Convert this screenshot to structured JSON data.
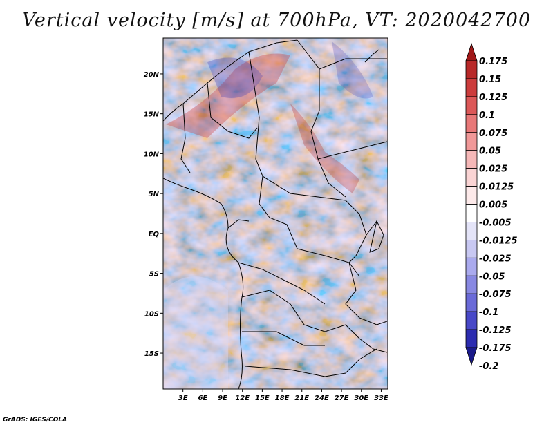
{
  "title": "Vertical velocity [m/s] at 700hPa, VT: 2020042700",
  "footer": "GrADS: IGES/COLA",
  "map": {
    "variable": "Vertical velocity",
    "units": "m/s",
    "level": "700hPa",
    "valid_time": "2020042700",
    "lon_ticks": [
      "3E",
      "6E",
      "9E",
      "12E",
      "15E",
      "18E",
      "21E",
      "24E",
      "27E",
      "30E",
      "33E"
    ],
    "lat_ticks": [
      "20N",
      "15N",
      "10N",
      "5N",
      "EQ",
      "5S",
      "10S",
      "15S"
    ],
    "lon_range": [
      0,
      34
    ],
    "lat_range": [
      -19.5,
      24.5
    ]
  },
  "colorbar": {
    "labels": [
      "0.175",
      "0.15",
      "0.125",
      "0.1",
      "0.075",
      "0.05",
      "0.025",
      "0.0125",
      "0.005",
      "-0.005",
      "-0.0125",
      "-0.025",
      "-0.05",
      "-0.075",
      "-0.1",
      "-0.125",
      "-0.175",
      "-0.2"
    ],
    "colors": [
      "#a01818",
      "#b82828",
      "#cc3c3c",
      "#dc5858",
      "#e87878",
      "#f09898",
      "#f6b8b8",
      "#fad4d4",
      "#fdeaea",
      "#ffffff",
      "#e4e4f8",
      "#c8c8f2",
      "#aaaaee",
      "#8888e2",
      "#6a6ad8",
      "#4848c8",
      "#2c2cb0",
      "#1a1a8a"
    ]
  }
}
